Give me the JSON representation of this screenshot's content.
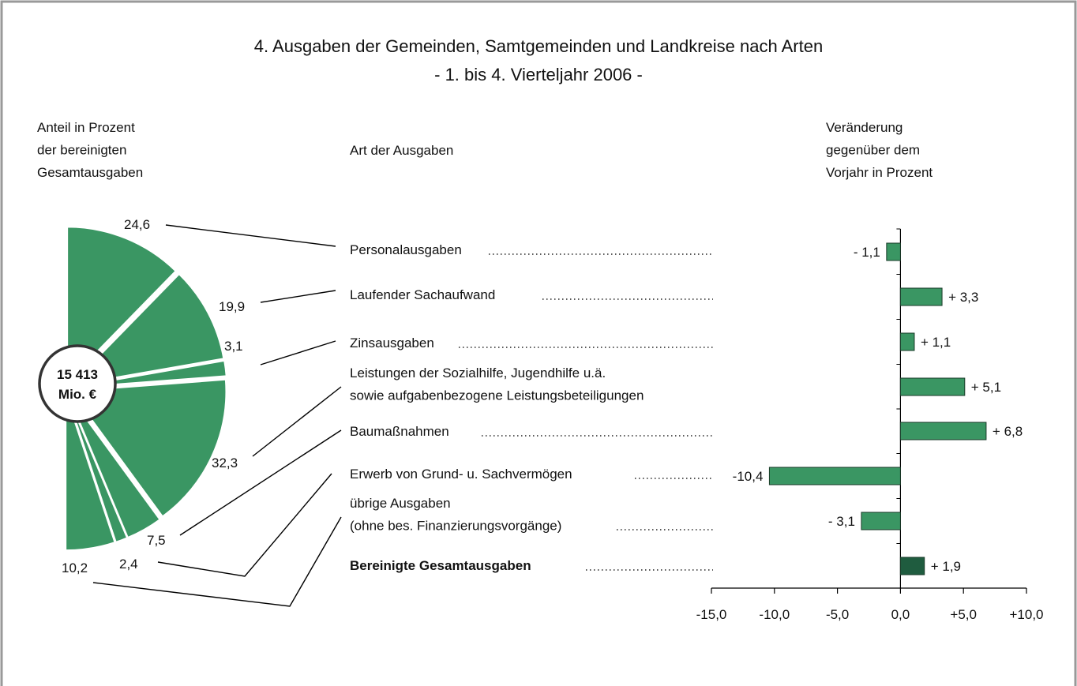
{
  "chart_data": [
    {
      "type": "pie",
      "title": "4. Ausgaben der Gemeinden, Samtgemeinden und Landkreise nach Arten",
      "subtitle": "- 1. bis 4. Vierteljahr 2006 -",
      "label": "Anteil in Prozent\nder bereinigten\nGesamtausgaben",
      "center_label": "15 413\nMio. €",
      "values": [
        24.6,
        19.9,
        3.1,
        32.3,
        7.5,
        2.4,
        10.2
      ],
      "value_labels": [
        "24,6",
        "19,9",
        "3,1",
        "32,3",
        "7,5",
        "2,4",
        "10,2"
      ],
      "color": "#3a9663"
    },
    {
      "type": "bar",
      "orientation": "horizontal",
      "category_label": "Art der Ausgaben",
      "xlabel": "Veränderung\ngegenüber dem\nVorjahr in Prozent",
      "categories": [
        "Personalausgaben",
        "Laufender Sachaufwand",
        "Zinsausgaben",
        "Leistungen der Sozialhilfe, Jugendhilfe u.ä.\nsowie aufgabenbezogene Leistungsbeteiligungen",
        "Baumaßnahmen",
        "Erwerb von Grund- u. Sachvermögen",
        "übrige Ausgaben\n(ohne bes. Finanzierungsvorgänge)",
        "Bereinigte Gesamtausgaben"
      ],
      "values": [
        -1.1,
        3.3,
        1.1,
        5.1,
        6.8,
        -10.4,
        -3.1,
        1.9
      ],
      "value_labels": [
        "- 1,1",
        "+ 3,3",
        "+ 1,1",
        "+ 5,1",
        "+ 6,8",
        "-10,4",
        "- 3,1",
        "+ 1,9"
      ],
      "colors": [
        "#3a9663",
        "#3a9663",
        "#3a9663",
        "#3a9663",
        "#3a9663",
        "#3a9663",
        "#3a9663",
        "#1f5c3f"
      ],
      "xlim": [
        -15,
        10
      ],
      "xticks": [
        {
          "value": -15,
          "label": "-15,0"
        },
        {
          "value": -10,
          "label": "-10,0"
        },
        {
          "value": -5,
          "label": "-5,0"
        },
        {
          "value": 0,
          "label": "0,0"
        },
        {
          "value": 5,
          "label": "+5,0"
        },
        {
          "value": 10,
          "label": "+10,0"
        }
      ]
    }
  ]
}
